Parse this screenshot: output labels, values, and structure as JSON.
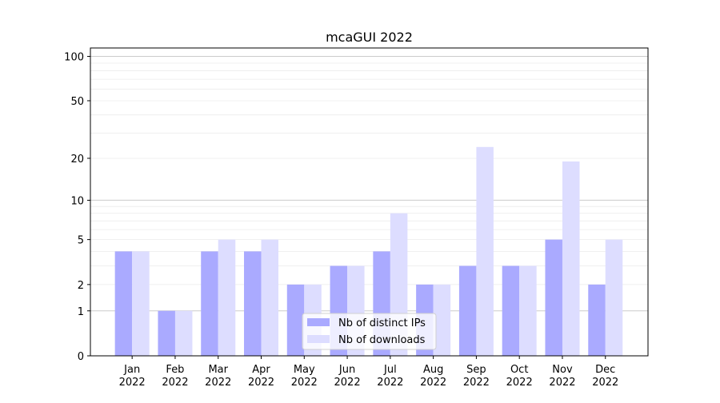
{
  "chart_data": {
    "type": "bar",
    "title": "mcaGUI 2022",
    "xlabel": "",
    "ylabel": "",
    "yscale": "log(1+y)",
    "ylim": [
      0,
      114
    ],
    "yticks": [
      0,
      1,
      2,
      5,
      10,
      20,
      50,
      100
    ],
    "ytick_labels": [
      "0",
      "1",
      "2",
      "5",
      "10",
      "20",
      "50",
      "100"
    ],
    "grid": "horizontal, major at 1/10/100, minor between",
    "legend_placement": "bottom-center",
    "categories": [
      "Jan\n2022",
      "Feb\n2022",
      "Mar\n2022",
      "Apr\n2022",
      "May\n2022",
      "Jun\n2022",
      "Jul\n2022",
      "Aug\n2022",
      "Sep\n2022",
      "Oct\n2022",
      "Nov\n2022",
      "Dec\n2022"
    ],
    "series": [
      {
        "name": "Nb of distinct IPs",
        "color": "#aaaaff",
        "values": [
          4,
          1,
          4,
          4,
          2,
          3,
          4,
          2,
          3,
          3,
          5,
          2
        ]
      },
      {
        "name": "Nb of downloads",
        "color": "#ddddff",
        "values": [
          4,
          1,
          5,
          5,
          2,
          3,
          8,
          2,
          24,
          3,
          19,
          5
        ]
      }
    ]
  }
}
